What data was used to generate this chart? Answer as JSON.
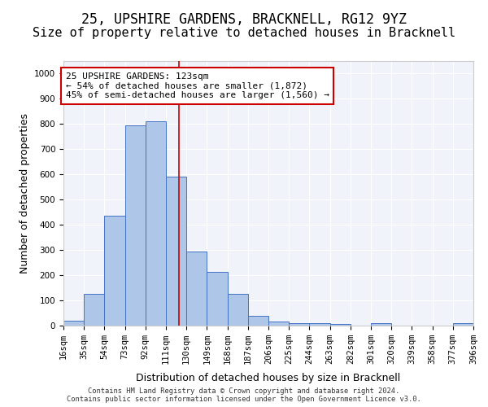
{
  "title1": "25, UPSHIRE GARDENS, BRACKNELL, RG12 9YZ",
  "title2": "Size of property relative to detached houses in Bracknell",
  "xlabel": "Distribution of detached houses by size in Bracknell",
  "ylabel": "Number of detached properties",
  "bin_labels": [
    "16sqm",
    "35sqm",
    "54sqm",
    "73sqm",
    "92sqm",
    "111sqm",
    "130sqm",
    "149sqm",
    "168sqm",
    "187sqm",
    "206sqm",
    "225sqm",
    "244sqm",
    "263sqm",
    "282sqm",
    "301sqm",
    "320sqm",
    "339sqm",
    "358sqm",
    "377sqm",
    "396sqm"
  ],
  "bar_values": [
    20,
    125,
    435,
    795,
    810,
    590,
    295,
    212,
    125,
    40,
    15,
    10,
    10,
    5,
    0,
    10,
    0,
    0,
    0,
    10,
    0
  ],
  "bin_edges": [
    16,
    35,
    54,
    73,
    92,
    111,
    130,
    149,
    168,
    187,
    206,
    225,
    244,
    263,
    282,
    301,
    320,
    339,
    358,
    377,
    396
  ],
  "bar_color": "#aec6e8",
  "bar_edgecolor": "#4472c4",
  "vline_x": 123,
  "vline_color": "#cc0000",
  "annotation_text": "25 UPSHIRE GARDENS: 123sqm\n← 54% of detached houses are smaller (1,872)\n45% of semi-detached houses are larger (1,560) →",
  "annotation_box_edgecolor": "#cc0000",
  "annotation_box_facecolor": "white",
  "ylim": [
    0,
    1050
  ],
  "yticks": [
    0,
    100,
    200,
    300,
    400,
    500,
    600,
    700,
    800,
    900,
    1000
  ],
  "background_color": "#f0f4fa",
  "grid_color": "#ffffff",
  "footer": "Contains HM Land Registry data © Crown copyright and database right 2024.\nContains public sector information licensed under the Open Government Licence v3.0.",
  "title1_fontsize": 12,
  "title2_fontsize": 11,
  "ylabel_fontsize": 9,
  "xlabel_fontsize": 9,
  "tick_fontsize": 7.5,
  "annotation_fontsize": 8
}
